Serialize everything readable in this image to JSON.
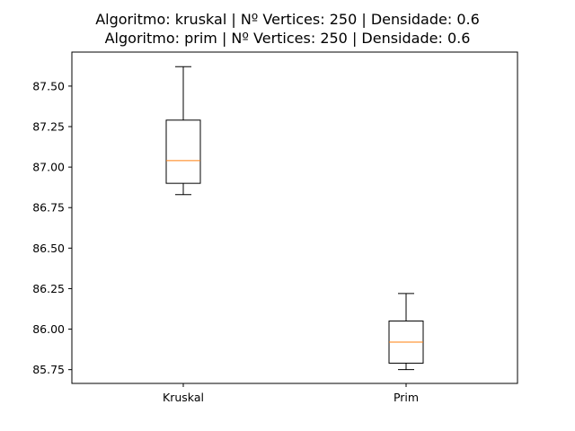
{
  "chart_data": {
    "type": "box",
    "title_lines": [
      "Algoritmo: kruskal | Nº Vertices: 250 | Densidade: 0.6",
      "Algoritmo: prim | Nº Vertices: 250 | Densidade: 0.6"
    ],
    "categories": [
      "Kruskal",
      "Prim"
    ],
    "boxes": [
      {
        "category": "Kruskal",
        "whisker_low": 86.83,
        "q1": 86.9,
        "median": 87.04,
        "q3": 87.29,
        "whisker_high": 87.62
      },
      {
        "category": "Prim",
        "whisker_low": 85.75,
        "q1": 85.79,
        "median": 85.92,
        "q3": 86.05,
        "whisker_high": 86.22
      }
    ],
    "y_ticks": [
      85.75,
      86.0,
      86.25,
      86.5,
      86.75,
      87.0,
      87.25,
      87.5
    ],
    "y_tick_labels": [
      "85.75",
      "86.00",
      "86.25",
      "86.50",
      "86.75",
      "87.00",
      "87.25",
      "87.50"
    ],
    "ylim": [
      85.665,
      87.71
    ],
    "xlabel": "",
    "ylabel": "",
    "grid": false,
    "legend": "none",
    "colors": {
      "box": "#000000",
      "median": "#ff7f0e",
      "axes": "#000000"
    }
  }
}
